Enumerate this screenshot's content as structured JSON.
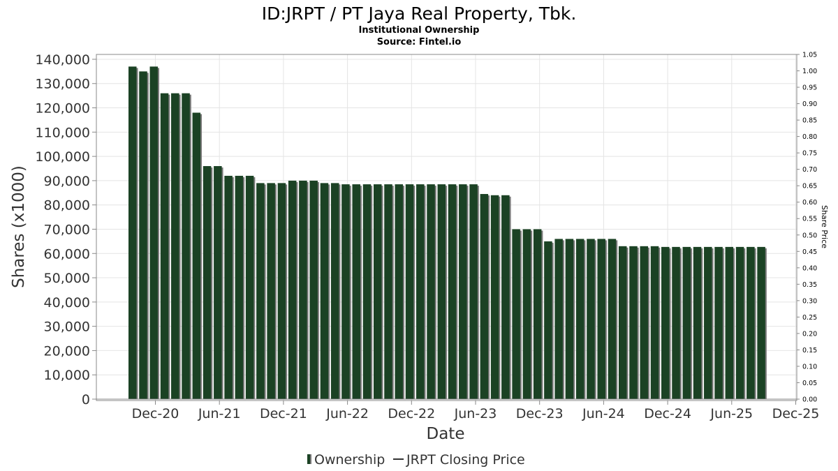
{
  "chart_data": {
    "type": "bar",
    "title": "ID:JRPT / PT Jaya Real Property, Tbk.",
    "subtitle_lines": [
      "Institutional Ownership",
      "Source: Fintel.io"
    ],
    "xlabel": "Date",
    "ylabel": "Shares (x1000)",
    "y2label": "Share Price",
    "ylim": [
      0,
      142000
    ],
    "y2lim": [
      0,
      1.05
    ],
    "y_ticks": [
      "0",
      "10,000",
      "20,000",
      "30,000",
      "40,000",
      "50,000",
      "60,000",
      "70,000",
      "80,000",
      "90,000",
      "100,000",
      "110,000",
      "120,000",
      "130,000",
      "140,000"
    ],
    "y2_ticks": [
      "0.00",
      "0.05",
      "0.10",
      "0.15",
      "0.20",
      "0.25",
      "0.30",
      "0.35",
      "0.40",
      "0.45",
      "0.50",
      "0.55",
      "0.60",
      "0.65",
      "0.70",
      "0.75",
      "0.80",
      "0.85",
      "0.90",
      "0.95",
      "1.00",
      "1.05"
    ],
    "x_ticks": [
      "Dec-20",
      "Jun-21",
      "Dec-21",
      "Jun-22",
      "Dec-22",
      "Jun-23",
      "Dec-23",
      "Jun-24",
      "Dec-24",
      "Jun-25",
      "Dec-25"
    ],
    "grid": true,
    "legend_position": "bottom",
    "series": [
      {
        "name": "Ownership",
        "color": "#1b4224",
        "values": [
          137000,
          135000,
          137000,
          126000,
          126000,
          126000,
          118000,
          96000,
          96000,
          92000,
          92000,
          92000,
          89000,
          89000,
          89000,
          90000,
          90000,
          90000,
          89000,
          89000,
          88500,
          88500,
          88500,
          88500,
          88500,
          88500,
          88500,
          88500,
          88500,
          88500,
          88500,
          88500,
          88500,
          84500,
          84000,
          84000,
          70000,
          70000,
          70000,
          65000,
          66000,
          66000,
          66000,
          66000,
          66000,
          66000,
          63000,
          63000,
          63000,
          63000,
          62700,
          62700,
          62700,
          62700,
          62700,
          62700,
          62700,
          62700,
          62700,
          62700
        ]
      },
      {
        "name": "JRPT Closing Price",
        "color": "#333333",
        "values": []
      }
    ]
  }
}
